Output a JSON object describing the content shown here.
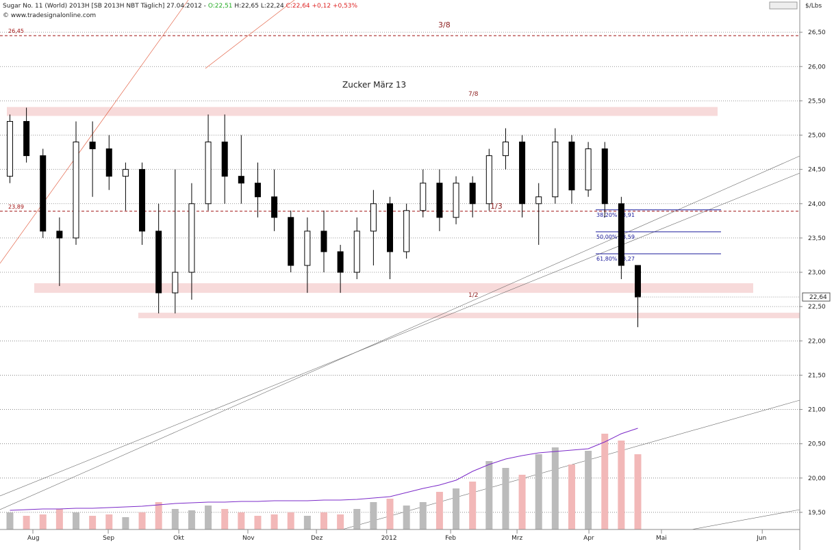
{
  "chart_data": {
    "type": "candlestick",
    "title": "Sugar No. 11 (World) 2013H [SB 2013H NBT Täglich] 27.04.2012 -",
    "ohlc_labels": [
      "O:22,51",
      "H:22,65",
      "L:22,24",
      "C:22,64 +0,12 +0,53%"
    ],
    "source": "© www.tradesignalonline.com",
    "unit": "$/Lbs",
    "subtitle": "Zucker März 13",
    "annotations": [
      "3/8",
      "7/8",
      "1/3",
      "1/2"
    ],
    "last_label": "22,64",
    "categories": [
      null,
      null,
      null,
      null,
      null,
      null,
      null,
      null,
      null,
      null,
      null,
      null,
      null,
      null,
      null,
      null,
      null,
      null,
      null,
      null,
      null,
      null,
      null,
      null,
      null,
      null,
      null,
      null,
      null,
      null,
      null,
      null,
      null,
      null,
      null,
      null,
      null,
      null,
      null
    ],
    "open": [
      24.4,
      25.2,
      24.7,
      23.6,
      23.5,
      24.9,
      24.8,
      24.4,
      24.5,
      23.6,
      22.7,
      23.0,
      24.0,
      24.9,
      24.4,
      24.3,
      24.1,
      23.8,
      23.1,
      23.6,
      23.3,
      23.0,
      23.6,
      24.0,
      23.3,
      23.9,
      24.3,
      23.8,
      24.3,
      24.0,
      24.7,
      24.9,
      24.0,
      24.1,
      24.9,
      24.2,
      24.8,
      24.0,
      23.1
    ],
    "high": [
      25.3,
      25.4,
      24.8,
      23.8,
      25.2,
      25.2,
      25.0,
      24.6,
      24.6,
      24.0,
      24.5,
      24.3,
      25.3,
      25.3,
      25.0,
      24.6,
      24.5,
      23.9,
      23.8,
      23.9,
      23.4,
      23.8,
      24.2,
      24.1,
      24.0,
      24.5,
      24.5,
      24.4,
      24.4,
      24.8,
      25.1,
      25.0,
      24.3,
      25.1,
      25.0,
      24.9,
      24.9,
      24.1,
      23.1
    ],
    "low": [
      24.3,
      24.6,
      23.5,
      22.8,
      23.4,
      24.1,
      24.2,
      23.9,
      23.4,
      22.4,
      22.4,
      22.6,
      23.9,
      24.0,
      24.0,
      23.8,
      23.6,
      23.0,
      22.7,
      23.0,
      22.7,
      22.9,
      23.1,
      22.9,
      23.2,
      23.8,
      23.6,
      23.7,
      23.8,
      23.9,
      24.5,
      23.8,
      23.4,
      24.0,
      24.0,
      24.1,
      23.8,
      22.9,
      22.2
    ],
    "close": [
      25.2,
      24.7,
      23.6,
      23.5,
      24.9,
      24.8,
      24.4,
      24.5,
      23.6,
      22.7,
      23.0,
      24.0,
      24.9,
      24.4,
      24.3,
      24.1,
      23.8,
      23.1,
      23.6,
      23.3,
      23.0,
      23.6,
      24.0,
      23.3,
      23.9,
      24.3,
      23.8,
      24.3,
      24.0,
      24.7,
      24.9,
      24.0,
      24.1,
      24.9,
      24.2,
      24.8,
      24.0,
      23.1,
      22.64
    ],
    "volume": [
      25,
      20,
      22,
      30,
      25,
      20,
      22,
      18,
      25,
      40,
      30,
      28,
      35,
      30,
      25,
      20,
      22,
      25,
      20,
      25,
      22,
      30,
      40,
      45,
      35,
      40,
      55,
      60,
      70,
      100,
      90,
      80,
      110,
      120,
      95,
      115,
      140,
      130,
      110
    ],
    "open_interest": [
      28,
      29,
      30,
      30,
      31,
      31,
      32,
      33,
      34,
      36,
      38,
      39,
      40,
      40,
      41,
      41,
      42,
      42,
      42,
      43,
      43,
      44,
      46,
      48,
      54,
      60,
      65,
      72,
      85,
      95,
      103,
      108,
      112,
      114,
      116,
      118,
      128,
      140,
      148
    ],
    "xlim": [
      -0.6,
      47.8
    ],
    "xticks": [
      {
        "value": 1.39,
        "label": "Aug"
      },
      {
        "value": 5.95,
        "label": "Sep"
      },
      {
        "value": 10.22,
        "label": "Okt"
      },
      {
        "value": 14.4,
        "label": "Nov"
      },
      {
        "value": 18.55,
        "label": "Dez"
      },
      {
        "value": 22.8,
        "label": "2012"
      },
      {
        "value": 26.67,
        "label": "Feb"
      },
      {
        "value": 30.69,
        "label": "Mrz"
      },
      {
        "value": 35.04,
        "label": "Apr"
      },
      {
        "value": 39.43,
        "label": "Mai"
      },
      {
        "value": 45.53,
        "label": "Jun"
      }
    ],
    "ylim": [
      19.25,
      26.97
    ],
    "yticks": [
      {
        "value": 19.5,
        "label": "19,50"
      },
      {
        "value": 20,
        "label": "20,00"
      },
      {
        "value": 20.5,
        "label": "20,50"
      },
      {
        "value": 21,
        "label": "21,00"
      },
      {
        "value": 21.5,
        "label": "21,50"
      },
      {
        "value": 22,
        "label": "22,00"
      },
      {
        "value": 22.5,
        "label": "22,50"
      },
      {
        "value": 23,
        "label": "23,00"
      },
      {
        "value": 23.5,
        "label": "23,50"
      },
      {
        "value": 24,
        "label": "24,00"
      },
      {
        "value": 24.5,
        "label": "24,50"
      },
      {
        "value": 25,
        "label": "25,00"
      },
      {
        "value": 25.5,
        "label": "25,50"
      },
      {
        "value": 26,
        "label": "26,00"
      },
      {
        "value": 26.5,
        "label": "26,50"
      }
    ],
    "levels": [
      {
        "value": 26.45,
        "label": "26,45"
      },
      {
        "value": 23.89,
        "label": "23,89"
      }
    ],
    "fib": [
      {
        "value": 23.91,
        "label": "38,20% 23,91"
      },
      {
        "value": 23.59,
        "label": "50,00% 23,59"
      },
      {
        "value": 23.27,
        "label": "61,80% 23,27"
      }
    ],
    "zones": [
      [
        25.28,
        25.41
      ],
      [
        22.7,
        22.84
      ],
      [
        22.33,
        22.41
      ]
    ],
    "grid": true
  }
}
